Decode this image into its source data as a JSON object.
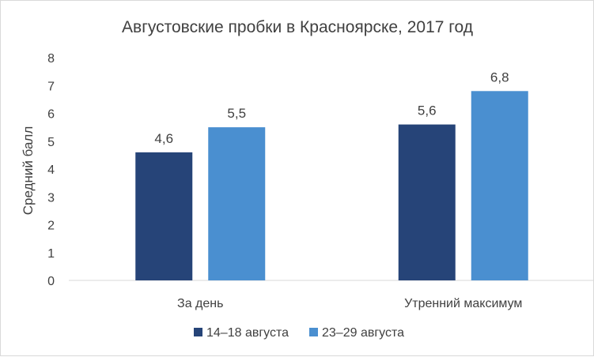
{
  "chart_data": {
    "type": "bar",
    "title": "Августовские пробки в Красноярске, 2017 год",
    "xlabel": "",
    "ylabel": "Средний балл",
    "categories": [
      "За день",
      "Утренний максимум"
    ],
    "series": [
      {
        "name": "14–18 августа",
        "values": [
          4.6,
          5.6
        ],
        "labels": [
          "4,6",
          "5,6"
        ],
        "color": "#264478"
      },
      {
        "name": "23–29 августа",
        "values": [
          5.5,
          6.8
        ],
        "labels": [
          "5,5",
          "6,8"
        ],
        "color": "#4a8fd0"
      }
    ],
    "ylim": [
      0,
      8
    ],
    "yticks": [
      "0",
      "1",
      "2",
      "3",
      "4",
      "5",
      "6",
      "7",
      "8"
    ],
    "grid": false,
    "legend_position": "bottom"
  }
}
